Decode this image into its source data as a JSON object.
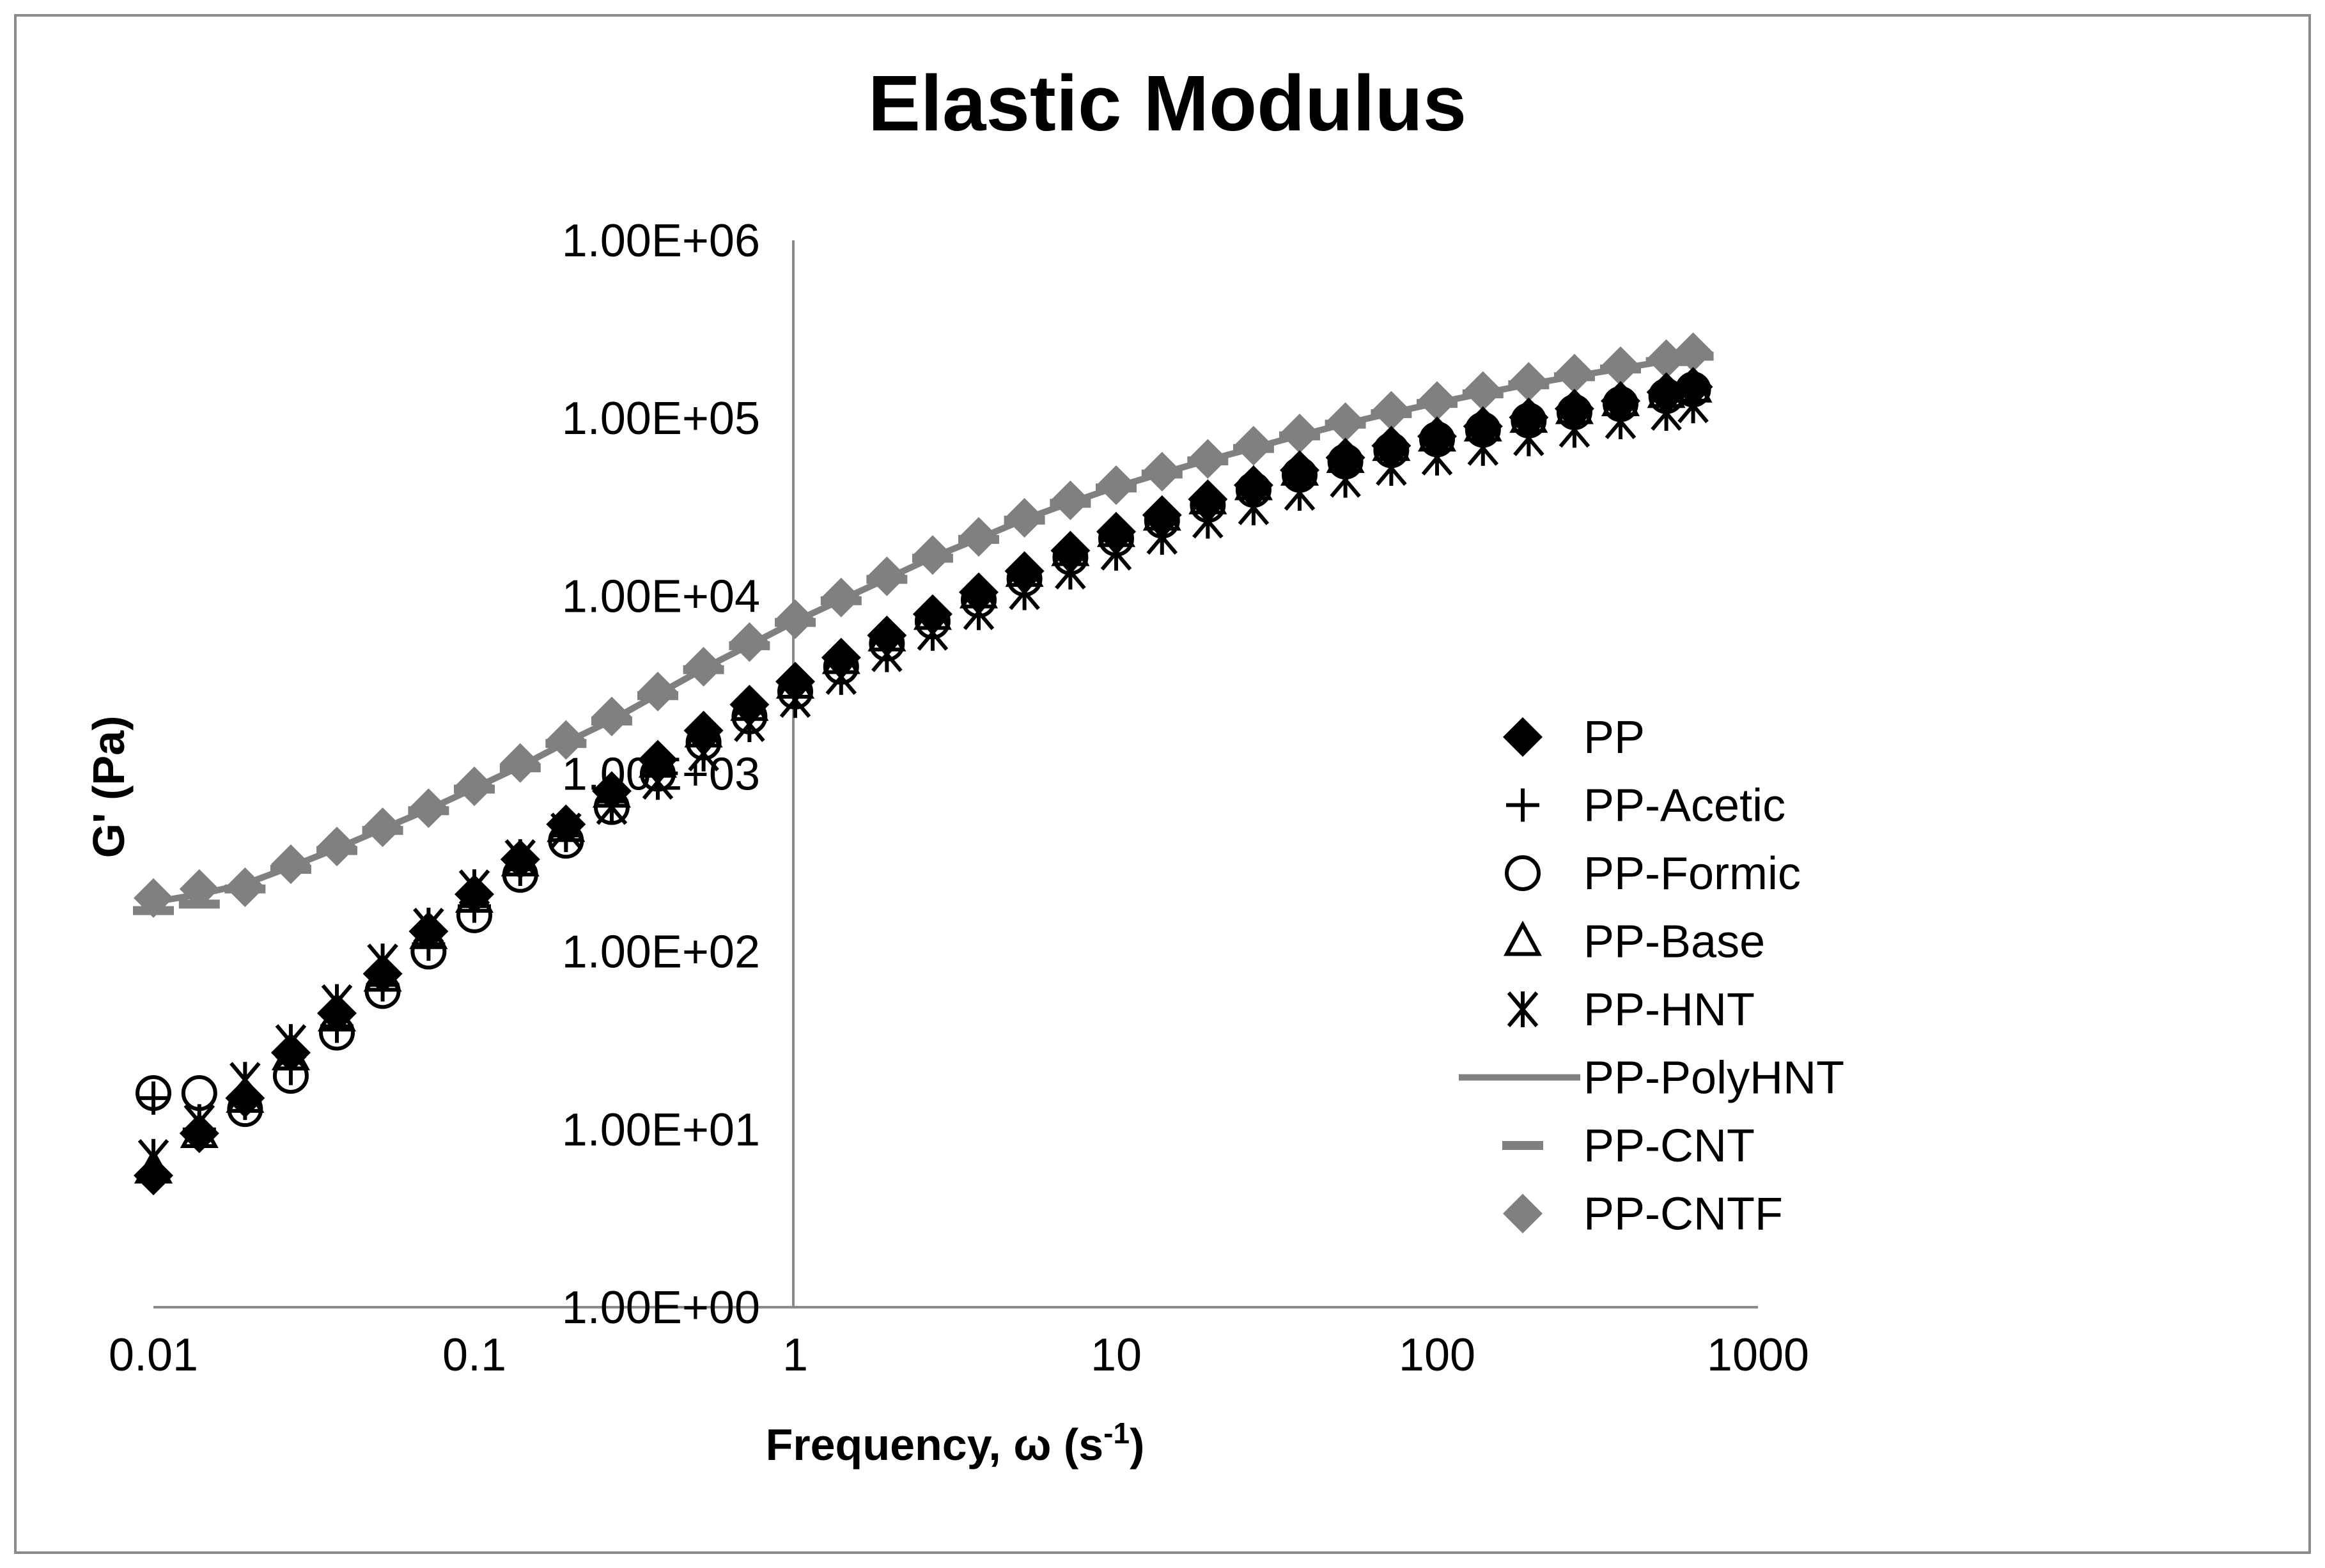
{
  "chart_data": {
    "type": "scatter",
    "title": "Elastic Modulus",
    "xlabel": "Frequency, ω (s",
    "xlabel_sup": "-1",
    "xlabel_end": ")",
    "ylabel": "G' (Pa)",
    "x_scale": "log",
    "y_scale": "log",
    "xlim": [
      0.01,
      1000
    ],
    "ylim": [
      1,
      1000000
    ],
    "x_tick_labels": [
      "0.01",
      "0.1",
      "1",
      "10",
      "100",
      "1000"
    ],
    "y_tick_labels": [
      "1.00E+00",
      "1.00E+01",
      "1.00E+02",
      "1.00E+03",
      "1.00E+04",
      "1.00E+05",
      "1.00E+06"
    ],
    "grid": false,
    "legend_position": "right",
    "x": [
      0.01,
      0.0139,
      0.0193,
      0.0268,
      0.0373,
      0.0518,
      0.072,
      0.1,
      0.139,
      0.193,
      0.268,
      0.373,
      0.518,
      0.72,
      1,
      1.39,
      1.93,
      2.68,
      3.73,
      5.18,
      7.2,
      10,
      13.9,
      19.3,
      26.8,
      37.3,
      51.8,
      72,
      100,
      139,
      193,
      268,
      373,
      518,
      628
    ],
    "series": [
      {
        "name": "PP",
        "marker": "diamond",
        "color": "#000000",
        "values": [
          5.5,
          9.5,
          15,
          27,
          45,
          75,
          130,
          210,
          330,
          520,
          800,
          1200,
          1750,
          2450,
          3300,
          4500,
          6000,
          7900,
          10500,
          13800,
          18000,
          23000,
          28500,
          35000,
          42000,
          51000,
          60000,
          70000,
          79000,
          90000,
          101000,
          113000,
          125000,
          140000,
          150000
        ]
      },
      {
        "name": "PP-Acetic",
        "marker": "plus",
        "color": "#000000",
        "values": [
          15,
          10,
          14,
          22,
          38,
          65,
          110,
          180,
          290,
          450,
          700,
          1050,
          1550,
          2200,
          3000,
          4100,
          5500,
          7300,
          9600,
          12500,
          16500,
          21000,
          26500,
          32500,
          39500,
          48000,
          57000,
          66000,
          76000,
          86000,
          97000,
          108000,
          120000,
          133000,
          145000
        ]
      },
      {
        "name": "PP-Formic",
        "marker": "circle",
        "color": "#000000",
        "values": [
          16,
          16,
          13,
          20,
          35,
          60,
          100,
          160,
          270,
          420,
          650,
          1000,
          1500,
          2100,
          2900,
          4000,
          5400,
          7200,
          9500,
          12500,
          16500,
          21000,
          26500,
          32500,
          39500,
          48000,
          57000,
          66000,
          76000,
          86000,
          97000,
          108000,
          120000,
          133000,
          145000
        ]
      },
      {
        "name": "PP-Base",
        "marker": "triangle",
        "color": "#000000",
        "values": [
          6,
          9.5,
          15,
          26,
          43,
          72,
          125,
          200,
          320,
          500,
          780,
          1150,
          1700,
          2400,
          3200,
          4400,
          5900,
          7800,
          10300,
          13600,
          17800,
          22800,
          28200,
          34800,
          41800,
          50500,
          59500,
          69500,
          78500,
          89500,
          100000,
          112000,
          124000,
          138000,
          148000
        ]
      },
      {
        "name": "PP-HNT",
        "marker": "star",
        "color": "#000000",
        "values": [
          7,
          11,
          19,
          31,
          52,
          88,
          140,
          230,
          340,
          480,
          650,
          900,
          1300,
          1900,
          2600,
          3500,
          4700,
          6200,
          8100,
          10500,
          13700,
          17500,
          21500,
          26500,
          31500,
          38000,
          45000,
          52500,
          60000,
          68000,
          77000,
          86000,
          96000,
          107000,
          118000
        ]
      },
      {
        "name": "PP-PolyHNT",
        "marker": "line",
        "color": "#808080",
        "values": [
          190,
          210,
          240,
          300,
          380,
          490,
          630,
          830,
          1100,
          1500,
          2000,
          2800,
          3900,
          5300,
          7200,
          9500,
          12500,
          16500,
          21000,
          27000,
          33500,
          41000,
          49000,
          58000,
          68000,
          80000,
          93000,
          107000,
          122000,
          138000,
          155000,
          172000,
          190000,
          210000,
          225000
        ]
      },
      {
        "name": "PP-CNT",
        "marker": "dash",
        "color": "#808080",
        "values": [
          170,
          185,
          225,
          290,
          370,
          480,
          620,
          820,
          1080,
          1480,
          1980,
          2750,
          3850,
          5250,
          7100,
          9400,
          12400,
          16300,
          20800,
          26700,
          33200,
          40500,
          48500,
          57500,
          67500,
          79500,
          92500,
          106000,
          121000,
          137000,
          154000,
          171000,
          189000,
          208000,
          223000
        ]
      },
      {
        "name": "PP-CNTF",
        "marker": "diamond",
        "color": "#808080",
        "values": [
          200,
          225,
          230,
          310,
          390,
          500,
          640,
          850,
          1150,
          1550,
          2100,
          2900,
          4000,
          5500,
          7400,
          9800,
          12900,
          17000,
          21500,
          27500,
          34500,
          42000,
          50000,
          59000,
          70000,
          82000,
          95000,
          110000,
          125000,
          142000,
          160000,
          178000,
          196000,
          215000,
          235000
        ]
      }
    ]
  }
}
